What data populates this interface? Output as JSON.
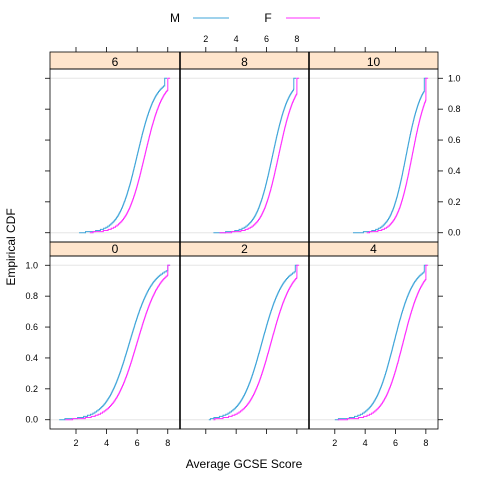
{
  "colors": {
    "M": "#3fa5d9",
    "F": "#ff2dff",
    "strip": "#ffe5cc",
    "grid": "#e6e6e6"
  },
  "chart_data": {
    "type": "line",
    "xlabel": "Average GCSE Score",
    "ylabel": "Empirical CDF",
    "legend_position": "top-center",
    "xlim": [
      0.3,
      8.8
    ],
    "ylim": [
      -0.06,
      1.06
    ],
    "x_ticks": [
      "2",
      "4",
      "6",
      "8"
    ],
    "y_ticks": [
      "0.0",
      "0.2",
      "0.4",
      "0.6",
      "0.8",
      "1.0"
    ],
    "grid": "reference lines at 0 and 1",
    "legend": [
      {
        "key": "M",
        "label": "M"
      },
      {
        "key": "F",
        "label": "F"
      }
    ],
    "panels": [
      {
        "strip": "0",
        "M": {
          "median": 5.5,
          "spread": 0.75,
          "min": 1.0,
          "max": 8.0
        },
        "F": {
          "median": 6.0,
          "spread": 0.75,
          "min": 1.4,
          "max": 8.0
        }
      },
      {
        "strip": "2",
        "M": {
          "median": 5.7,
          "spread": 0.7,
          "min": 2.3,
          "max": 7.9
        },
        "F": {
          "median": 6.3,
          "spread": 0.7,
          "min": 2.6,
          "max": 8.0
        }
      },
      {
        "strip": "4",
        "M": {
          "median": 5.9,
          "spread": 0.65,
          "min": 2.1,
          "max": 7.9
        },
        "F": {
          "median": 6.5,
          "spread": 0.65,
          "min": 2.3,
          "max": 8.0
        }
      },
      {
        "strip": "6",
        "M": {
          "median": 6.0,
          "spread": 0.6,
          "min": 2.3,
          "max": 7.8
        },
        "F": {
          "median": 6.5,
          "spread": 0.6,
          "min": 3.0,
          "max": 8.0
        }
      },
      {
        "strip": "8",
        "M": {
          "median": 6.4,
          "spread": 0.55,
          "min": 2.6,
          "max": 7.8
        },
        "F": {
          "median": 6.8,
          "spread": 0.55,
          "min": 3.0,
          "max": 8.0
        }
      },
      {
        "strip": "10",
        "M": {
          "median": 6.7,
          "spread": 0.5,
          "min": 3.3,
          "max": 7.9
        },
        "F": {
          "median": 7.1,
          "spread": 0.5,
          "min": 4.2,
          "max": 8.0
        }
      }
    ]
  }
}
